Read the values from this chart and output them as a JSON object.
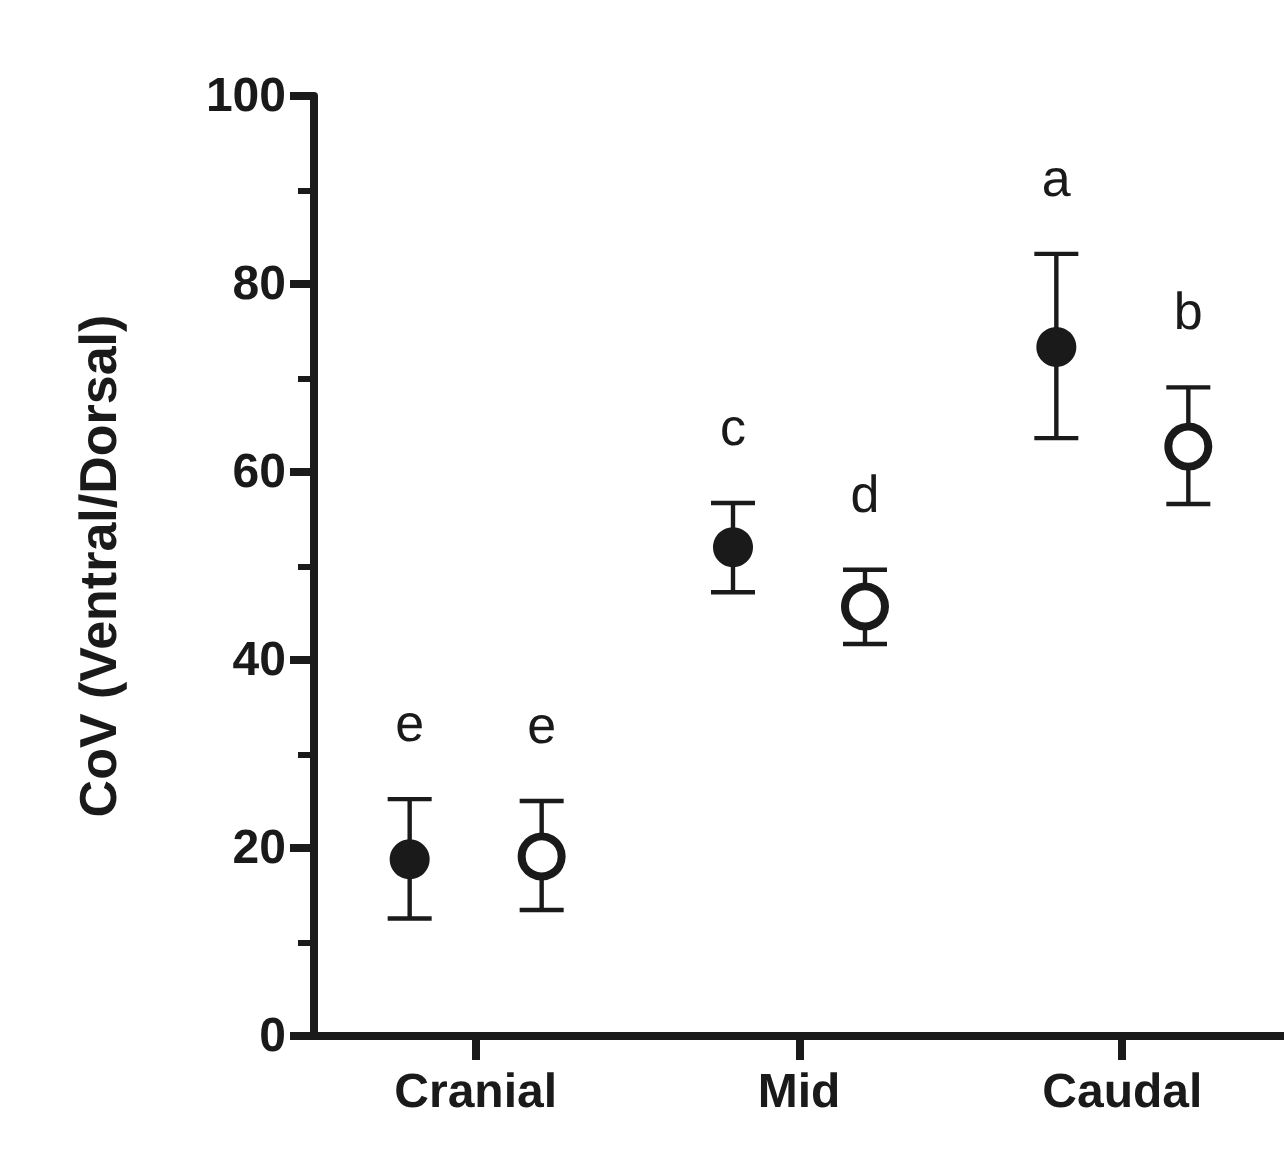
{
  "chart_data": {
    "type": "scatter",
    "ylabel": "CoV (Ventral/Dorsal)",
    "categories": [
      "Cranial",
      "Mid",
      "Caudal"
    ],
    "series": [
      {
        "color": "#1a1a1a",
        "marker": "circle",
        "values": [
          18.8,
          52.0,
          73.3
        ],
        "errors": [
          [
            12.5,
            25.2
          ],
          [
            47.2,
            56.7
          ],
          [
            63.6,
            83.2
          ]
        ]
      },
      {
        "color": "#1a1a1a",
        "marker": "open_circle",
        "values": [
          19.1,
          45.7,
          62.7
        ],
        "errors": [
          [
            13.4,
            25.0
          ],
          [
            41.7,
            49.6
          ],
          [
            56.6,
            69.0
          ]
        ]
      }
    ],
    "annotations": [
      "e",
      "e",
      "c",
      "d",
      "a",
      "b"
    ],
    "ylim": [
      0,
      100
    ],
    "yticks": [
      0,
      20,
      40,
      60,
      80,
      100
    ],
    "grid": false
  }
}
